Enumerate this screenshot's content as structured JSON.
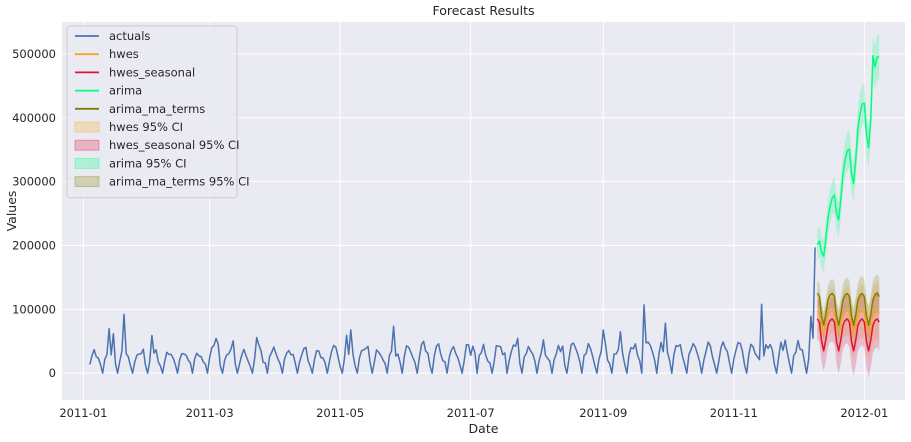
{
  "chart_data": {
    "type": "line",
    "title": "Forecast Results",
    "xlabel": "Date",
    "ylabel": "Values",
    "xlim": [
      "2010-12-22",
      "2012-01-20"
    ],
    "ylim": [
      -42000,
      550000
    ],
    "x_ticks": [
      "2011-01",
      "2011-03",
      "2011-05",
      "2011-07",
      "2011-09",
      "2011-11",
      "2012-01"
    ],
    "y_ticks": [
      0,
      100000,
      200000,
      300000,
      400000,
      500000
    ],
    "y_tick_labels": [
      "0",
      "100000",
      "200000",
      "300000",
      "400000",
      "500000"
    ],
    "grid": true,
    "legend_position": "top-left",
    "legend": [
      {
        "label": "actuals",
        "kind": "line",
        "color": "#4c72b0"
      },
      {
        "label": "hwes",
        "kind": "line",
        "color": "#f5a623"
      },
      {
        "label": "hwes_seasonal",
        "kind": "line",
        "color": "#dc143c"
      },
      {
        "label": "arima",
        "kind": "line",
        "color": "#00ff7f"
      },
      {
        "label": "arima_ma_terms",
        "kind": "line",
        "color": "#808000"
      },
      {
        "label": "hwes 95% CI",
        "kind": "band",
        "color": "#f5a623"
      },
      {
        "label": "hwes_seasonal 95% CI",
        "kind": "band",
        "color": "#dc143c"
      },
      {
        "label": "arima 95% CI",
        "kind": "band",
        "color": "#00ff7f"
      },
      {
        "label": "arima_ma_terms 95% CI",
        "kind": "band",
        "color": "#808000"
      }
    ],
    "actuals": {
      "start": "2011-01-04",
      "end": "2011-12-09",
      "weekly_pattern": [
        18000,
        30000,
        32000,
        28000,
        20000,
        12000,
        0
      ],
      "spikes": [
        {
          "date": "2011-01-15",
          "value": 62000
        },
        {
          "date": "2011-01-20",
          "value": 92000
        },
        {
          "date": "2011-09-20",
          "value": 107000
        },
        {
          "date": "2011-11-14",
          "value": 108000
        },
        {
          "date": "2011-12-09",
          "value": 197000
        }
      ]
    },
    "forecast_window": {
      "start": "2011-12-10",
      "end": "2012-01-08"
    },
    "series": [
      {
        "name": "arima",
        "start": 180000,
        "end": 450000,
        "peak": 497000,
        "ci_half_width": 35000
      },
      {
        "name": "arima_ma_terms",
        "level": 100000,
        "weekly_amplitude": 25000,
        "ci_half_width": 30000
      },
      {
        "name": "hwes",
        "level": 80000,
        "weekly_amplitude": 18000,
        "ci_half_width": 45000
      },
      {
        "name": "hwes_seasonal",
        "level": 60000,
        "weekly_amplitude": 25000,
        "ci_half_width": 45000
      }
    ]
  }
}
